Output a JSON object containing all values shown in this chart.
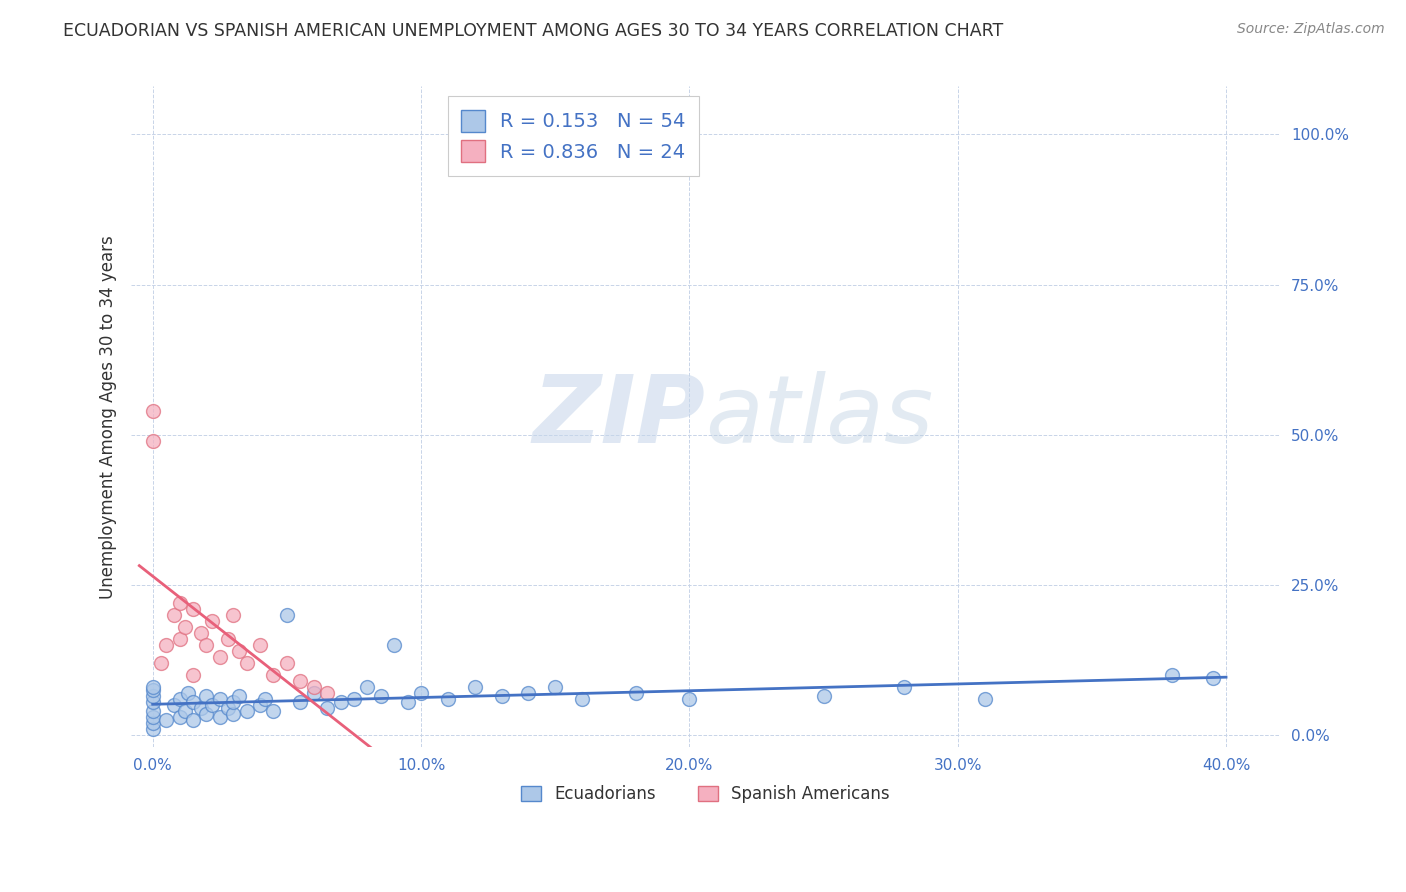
{
  "title": "ECUADORIAN VS SPANISH AMERICAN UNEMPLOYMENT AMONG AGES 30 TO 34 YEARS CORRELATION CHART",
  "source": "Source: ZipAtlas.com",
  "ylabel": "Unemployment Among Ages 30 to 34 years",
  "xlim": [
    -0.008,
    0.42
  ],
  "ylim": [
    -0.02,
    1.08
  ],
  "watermark_zip": "ZIP",
  "watermark_atlas": "atlas",
  "r_ecuadorian": 0.153,
  "n_ecuadorian": 54,
  "r_spanish": 0.836,
  "n_spanish": 24,
  "blue_fill": "#adc8e8",
  "pink_fill": "#f5b0c0",
  "blue_edge": "#5588cc",
  "pink_edge": "#e07080",
  "blue_line": "#4472c4",
  "pink_line": "#e8607a",
  "title_color": "#333333",
  "source_color": "#888888",
  "label_color": "#4472c4",
  "background_color": "#ffffff",
  "grid_color": "#c8d4e8",
  "ecuadorian_x": [
    0.0,
    0.0,
    0.0,
    0.0,
    0.0,
    0.0,
    0.0,
    0.0,
    0.005,
    0.008,
    0.01,
    0.01,
    0.012,
    0.013,
    0.015,
    0.015,
    0.018,
    0.02,
    0.02,
    0.022,
    0.025,
    0.025,
    0.028,
    0.03,
    0.03,
    0.032,
    0.035,
    0.04,
    0.042,
    0.045,
    0.05,
    0.055,
    0.06,
    0.065,
    0.07,
    0.075,
    0.08,
    0.085,
    0.09,
    0.095,
    0.1,
    0.11,
    0.12,
    0.13,
    0.14,
    0.15,
    0.16,
    0.18,
    0.2,
    0.25,
    0.28,
    0.31,
    0.38,
    0.395
  ],
  "ecuadorian_y": [
    0.01,
    0.02,
    0.03,
    0.04,
    0.055,
    0.065,
    0.075,
    0.08,
    0.025,
    0.05,
    0.03,
    0.06,
    0.04,
    0.07,
    0.025,
    0.055,
    0.045,
    0.035,
    0.065,
    0.05,
    0.03,
    0.06,
    0.045,
    0.035,
    0.055,
    0.065,
    0.04,
    0.05,
    0.06,
    0.04,
    0.2,
    0.055,
    0.07,
    0.045,
    0.055,
    0.06,
    0.08,
    0.065,
    0.15,
    0.055,
    0.07,
    0.06,
    0.08,
    0.065,
    0.07,
    0.08,
    0.06,
    0.07,
    0.06,
    0.065,
    0.08,
    0.06,
    0.1,
    0.095
  ],
  "spanish_x": [
    0.0,
    0.0,
    0.003,
    0.005,
    0.008,
    0.01,
    0.01,
    0.012,
    0.015,
    0.015,
    0.018,
    0.02,
    0.022,
    0.025,
    0.028,
    0.03,
    0.032,
    0.035,
    0.04,
    0.045,
    0.05,
    0.055,
    0.06,
    0.065
  ],
  "spanish_y": [
    0.54,
    0.49,
    0.12,
    0.15,
    0.2,
    0.16,
    0.22,
    0.18,
    0.1,
    0.21,
    0.17,
    0.15,
    0.19,
    0.13,
    0.16,
    0.2,
    0.14,
    0.12,
    0.15,
    0.1,
    0.12,
    0.09,
    0.08,
    0.07
  ],
  "xtick_positions": [
    0.0,
    0.1,
    0.2,
    0.3,
    0.4
  ],
  "xtick_labels": [
    "0.0%",
    "10.0%",
    "20.0%",
    "30.0%",
    "40.0%"
  ],
  "ytick_positions": [
    0.0,
    0.25,
    0.5,
    0.75,
    1.0
  ],
  "ytick_labels": [
    "0.0%",
    "25.0%",
    "50.0%",
    "75.0%",
    "100.0%"
  ]
}
